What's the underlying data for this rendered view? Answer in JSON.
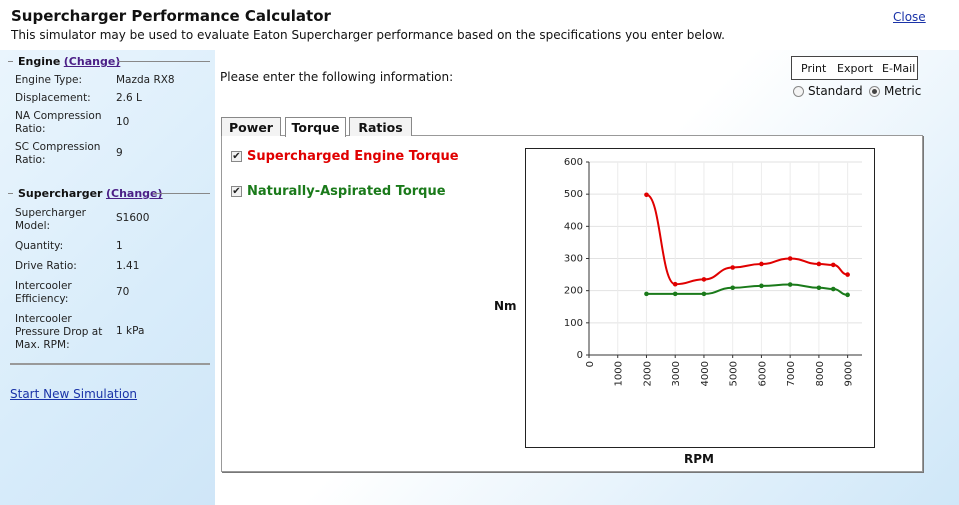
{
  "app": {
    "title": "Supercharger Performance Calculator",
    "subtitle": "This simulator may be used to evaluate Eaton Supercharger performance based on the specifications you enter below.",
    "close_label": "Close"
  },
  "sidebar": {
    "engine": {
      "heading": "Engine",
      "change_label": "(Change)",
      "fields": [
        {
          "label": "Engine Type:",
          "value": "Mazda RX8"
        },
        {
          "label": "Displacement:",
          "value": "2.6 L"
        },
        {
          "label": "NA Compression Ratio:",
          "value": "10"
        },
        {
          "label": "SC Compression Ratio:",
          "value": "9"
        }
      ]
    },
    "supercharger": {
      "heading": "Supercharger",
      "change_label": "(Change)",
      "fields": [
        {
          "label": "Supercharger Model:",
          "value": "S1600"
        },
        {
          "label": "Quantity:",
          "value": "1"
        },
        {
          "label": "Drive Ratio:",
          "value": "1.41"
        },
        {
          "label": "Intercooler Efficiency:",
          "value": "70"
        },
        {
          "label": "Intercooler Pressure Drop at Max. RPM:",
          "value": "1 kPa"
        }
      ]
    },
    "start_link": "Start New Simulation"
  },
  "main": {
    "prompt": "Please enter the following information:",
    "actions": {
      "print": "Print",
      "export": "Export",
      "email": "E-Mail"
    },
    "units": {
      "standard": "Standard",
      "metric": "Metric",
      "selected": "metric"
    },
    "tabs": [
      {
        "label": "Power",
        "active": false
      },
      {
        "label": "Torque",
        "active": true
      },
      {
        "label": "Ratios",
        "active": false
      }
    ],
    "checks": [
      {
        "label": "Supercharged Engine Torque",
        "checked": true,
        "color": "#e00000"
      },
      {
        "label": "Naturally-Aspirated Torque",
        "checked": true,
        "color": "#1a7a1a"
      }
    ]
  },
  "chart_data": {
    "type": "line",
    "xlabel": "RPM",
    "ylabel": "Nm",
    "xlim": [
      0,
      9500
    ],
    "ylim": [
      0,
      600
    ],
    "xticks": [
      0,
      1000,
      2000,
      3000,
      4000,
      5000,
      6000,
      7000,
      8000,
      9000
    ],
    "yticks": [
      0,
      100,
      200,
      300,
      400,
      500,
      600
    ],
    "grid": true,
    "series": [
      {
        "color": "#e00000",
        "x": [
          2000,
          3000,
          4000,
          5000,
          6000,
          7000,
          8000,
          8500,
          9000
        ],
        "y": [
          498,
          220,
          235,
          272,
          283,
          300,
          283,
          280,
          250
        ]
      },
      {
        "color": "#1a7a1a",
        "x": [
          2000,
          3000,
          4000,
          5000,
          6000,
          7000,
          8000,
          8500,
          9000
        ],
        "y": [
          190,
          190,
          190,
          209,
          215,
          219,
          209,
          205,
          187
        ]
      }
    ]
  }
}
